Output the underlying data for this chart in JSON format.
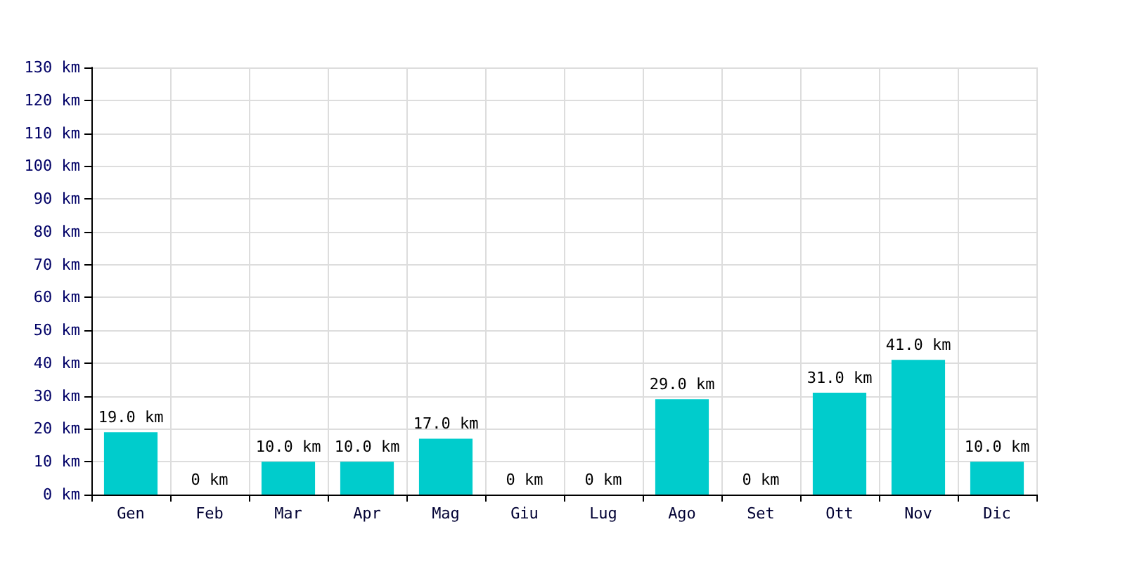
{
  "chart_data": {
    "type": "bar",
    "categories": [
      "Gen",
      "Feb",
      "Mar",
      "Apr",
      "Mag",
      "Giu",
      "Lug",
      "Ago",
      "Set",
      "Ott",
      "Nov",
      "Dic"
    ],
    "values": [
      19,
      0,
      10,
      10,
      17,
      0,
      0,
      29,
      0,
      31,
      41,
      10
    ],
    "value_labels": [
      "19.0 km",
      "0 km",
      "10.0 km",
      "10.0 km",
      "17.0 km",
      "0 km",
      "0 km",
      "29.0 km",
      "0 km",
      "31.0 km",
      "41.0 km",
      "10.0 km"
    ],
    "color": "#00cccc",
    "ylim": [
      0,
      130
    ],
    "yticks": [
      {
        "value": 0,
        "label": "0 km"
      },
      {
        "value": 10,
        "label": "10 km"
      },
      {
        "value": 20,
        "label": "20 km"
      },
      {
        "value": 30,
        "label": "30 km"
      },
      {
        "value": 40,
        "label": "40 km"
      },
      {
        "value": 50,
        "label": "50 km"
      },
      {
        "value": 60,
        "label": "60 km"
      },
      {
        "value": 70,
        "label": "70 km"
      },
      {
        "value": 80,
        "label": "80 km"
      },
      {
        "value": 90,
        "label": "90 km"
      },
      {
        "value": 100,
        "label": "100 km"
      },
      {
        "value": 110,
        "label": "110 km"
      },
      {
        "value": 120,
        "label": "120 km"
      },
      {
        "value": 130,
        "label": "130 km"
      }
    ],
    "grid": true
  }
}
